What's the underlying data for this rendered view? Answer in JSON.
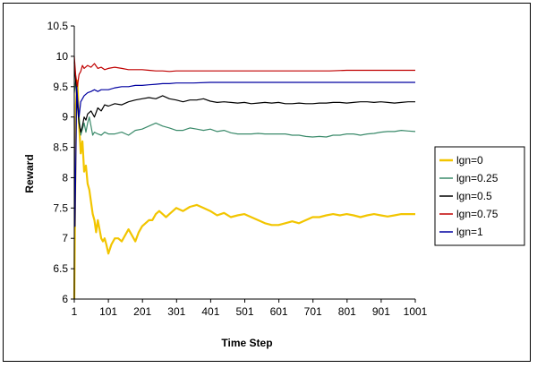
{
  "chart_data": {
    "type": "line",
    "title": "",
    "xlabel": "Time Step",
    "ylabel": "Reward",
    "xlim": [
      1,
      1001
    ],
    "ylim": [
      6,
      10.5
    ],
    "x_ticks": [
      1,
      101,
      201,
      301,
      401,
      501,
      601,
      701,
      801,
      901,
      1001
    ],
    "y_ticks": [
      6,
      6.5,
      7,
      7.5,
      8,
      8.5,
      9,
      9.5,
      10,
      10.5
    ],
    "y_tick_labels": [
      "6",
      "6.5",
      "7",
      "7.5",
      "8",
      "8.5",
      "9",
      "9.5",
      "10",
      "10.5"
    ],
    "grid": false,
    "legend_position": "right",
    "series": [
      {
        "name": "lgn=0",
        "color": "#F2C500",
        "points": [
          [
            1,
            6
          ],
          [
            3,
            7.4
          ],
          [
            6,
            9.2
          ],
          [
            10,
            9.6
          ],
          [
            15,
            8.9
          ],
          [
            20,
            8.4
          ],
          [
            25,
            8.6
          ],
          [
            30,
            8.1
          ],
          [
            35,
            8.2
          ],
          [
            40,
            7.9
          ],
          [
            45,
            7.8
          ],
          [
            50,
            7.6
          ],
          [
            55,
            7.4
          ],
          [
            60,
            7.3
          ],
          [
            65,
            7.1
          ],
          [
            70,
            7.3
          ],
          [
            75,
            7.15
          ],
          [
            80,
            7.0
          ],
          [
            85,
            6.95
          ],
          [
            90,
            7.0
          ],
          [
            95,
            6.9
          ],
          [
            101,
            6.75
          ],
          [
            110,
            6.9
          ],
          [
            120,
            7.0
          ],
          [
            130,
            7.0
          ],
          [
            140,
            6.95
          ],
          [
            150,
            7.05
          ],
          [
            160,
            7.15
          ],
          [
            170,
            7.05
          ],
          [
            180,
            6.95
          ],
          [
            190,
            7.1
          ],
          [
            200,
            7.2
          ],
          [
            210,
            7.25
          ],
          [
            220,
            7.3
          ],
          [
            230,
            7.3
          ],
          [
            240,
            7.4
          ],
          [
            250,
            7.45
          ],
          [
            260,
            7.4
          ],
          [
            270,
            7.35
          ],
          [
            280,
            7.4
          ],
          [
            290,
            7.45
          ],
          [
            300,
            7.5
          ],
          [
            320,
            7.45
          ],
          [
            340,
            7.52
          ],
          [
            360,
            7.55
          ],
          [
            380,
            7.5
          ],
          [
            400,
            7.45
          ],
          [
            420,
            7.38
          ],
          [
            440,
            7.42
          ],
          [
            460,
            7.35
          ],
          [
            480,
            7.38
          ],
          [
            500,
            7.4
          ],
          [
            520,
            7.35
          ],
          [
            540,
            7.3
          ],
          [
            560,
            7.25
          ],
          [
            580,
            7.22
          ],
          [
            600,
            7.22
          ],
          [
            620,
            7.25
          ],
          [
            640,
            7.28
          ],
          [
            660,
            7.25
          ],
          [
            680,
            7.3
          ],
          [
            700,
            7.35
          ],
          [
            720,
            7.35
          ],
          [
            740,
            7.38
          ],
          [
            760,
            7.4
          ],
          [
            780,
            7.38
          ],
          [
            800,
            7.4
          ],
          [
            820,
            7.38
          ],
          [
            840,
            7.35
          ],
          [
            860,
            7.38
          ],
          [
            880,
            7.4
          ],
          [
            900,
            7.38
          ],
          [
            920,
            7.36
          ],
          [
            940,
            7.38
          ],
          [
            960,
            7.4
          ],
          [
            980,
            7.4
          ],
          [
            1001,
            7.4
          ]
        ]
      },
      {
        "name": "lgn=0.25",
        "color": "#3A8A6A",
        "points": [
          [
            1,
            9.4
          ],
          [
            5,
            9.6
          ],
          [
            10,
            9.3
          ],
          [
            15,
            9.0
          ],
          [
            20,
            8.7
          ],
          [
            25,
            8.8
          ],
          [
            30,
            8.9
          ],
          [
            35,
            8.75
          ],
          [
            40,
            8.9
          ],
          [
            45,
            9.0
          ],
          [
            50,
            8.85
          ],
          [
            55,
            8.7
          ],
          [
            60,
            8.75
          ],
          [
            70,
            8.72
          ],
          [
            80,
            8.7
          ],
          [
            90,
            8.75
          ],
          [
            101,
            8.72
          ],
          [
            120,
            8.72
          ],
          [
            140,
            8.75
          ],
          [
            160,
            8.7
          ],
          [
            180,
            8.78
          ],
          [
            200,
            8.8
          ],
          [
            220,
            8.85
          ],
          [
            240,
            8.9
          ],
          [
            260,
            8.85
          ],
          [
            280,
            8.82
          ],
          [
            300,
            8.78
          ],
          [
            320,
            8.78
          ],
          [
            340,
            8.82
          ],
          [
            360,
            8.8
          ],
          [
            380,
            8.78
          ],
          [
            400,
            8.8
          ],
          [
            420,
            8.76
          ],
          [
            440,
            8.78
          ],
          [
            460,
            8.74
          ],
          [
            480,
            8.72
          ],
          [
            500,
            8.72
          ],
          [
            520,
            8.72
          ],
          [
            540,
            8.73
          ],
          [
            560,
            8.72
          ],
          [
            580,
            8.72
          ],
          [
            600,
            8.72
          ],
          [
            620,
            8.72
          ],
          [
            640,
            8.7
          ],
          [
            660,
            8.7
          ],
          [
            680,
            8.68
          ],
          [
            700,
            8.67
          ],
          [
            720,
            8.68
          ],
          [
            740,
            8.67
          ],
          [
            760,
            8.7
          ],
          [
            780,
            8.7
          ],
          [
            800,
            8.72
          ],
          [
            820,
            8.72
          ],
          [
            840,
            8.7
          ],
          [
            860,
            8.72
          ],
          [
            880,
            8.73
          ],
          [
            900,
            8.75
          ],
          [
            920,
            8.76
          ],
          [
            940,
            8.76
          ],
          [
            960,
            8.78
          ],
          [
            980,
            8.77
          ],
          [
            1001,
            8.76
          ]
        ]
      },
      {
        "name": "lgn=0.5",
        "color": "#000000",
        "points": [
          [
            1,
            9.9
          ],
          [
            5,
            9.6
          ],
          [
            10,
            9.2
          ],
          [
            15,
            8.9
          ],
          [
            20,
            8.75
          ],
          [
            25,
            8.85
          ],
          [
            30,
            9.0
          ],
          [
            35,
            8.95
          ],
          [
            40,
            9.05
          ],
          [
            50,
            9.1
          ],
          [
            60,
            9.0
          ],
          [
            70,
            9.15
          ],
          [
            80,
            9.1
          ],
          [
            90,
            9.2
          ],
          [
            101,
            9.18
          ],
          [
            120,
            9.22
          ],
          [
            140,
            9.2
          ],
          [
            160,
            9.25
          ],
          [
            180,
            9.28
          ],
          [
            200,
            9.3
          ],
          [
            220,
            9.32
          ],
          [
            240,
            9.3
          ],
          [
            260,
            9.35
          ],
          [
            280,
            9.3
          ],
          [
            300,
            9.28
          ],
          [
            320,
            9.25
          ],
          [
            340,
            9.28
          ],
          [
            360,
            9.28
          ],
          [
            380,
            9.3
          ],
          [
            400,
            9.26
          ],
          [
            420,
            9.24
          ],
          [
            440,
            9.25
          ],
          [
            460,
            9.24
          ],
          [
            480,
            9.23
          ],
          [
            500,
            9.24
          ],
          [
            520,
            9.22
          ],
          [
            540,
            9.23
          ],
          [
            560,
            9.24
          ],
          [
            580,
            9.23
          ],
          [
            600,
            9.24
          ],
          [
            620,
            9.22
          ],
          [
            640,
            9.22
          ],
          [
            660,
            9.23
          ],
          [
            680,
            9.22
          ],
          [
            700,
            9.22
          ],
          [
            720,
            9.23
          ],
          [
            740,
            9.23
          ],
          [
            760,
            9.24
          ],
          [
            780,
            9.24
          ],
          [
            800,
            9.23
          ],
          [
            820,
            9.24
          ],
          [
            840,
            9.25
          ],
          [
            860,
            9.25
          ],
          [
            880,
            9.24
          ],
          [
            900,
            9.25
          ],
          [
            920,
            9.24
          ],
          [
            940,
            9.23
          ],
          [
            960,
            9.24
          ],
          [
            980,
            9.25
          ],
          [
            1001,
            9.25
          ]
        ]
      },
      {
        "name": "lgn=0.75",
        "color": "#C00000",
        "points": [
          [
            1,
            10.0
          ],
          [
            5,
            9.7
          ],
          [
            10,
            9.5
          ],
          [
            15,
            9.7
          ],
          [
            20,
            9.75
          ],
          [
            25,
            9.85
          ],
          [
            30,
            9.8
          ],
          [
            40,
            9.85
          ],
          [
            50,
            9.82
          ],
          [
            60,
            9.88
          ],
          [
            70,
            9.8
          ],
          [
            80,
            9.82
          ],
          [
            90,
            9.78
          ],
          [
            101,
            9.8
          ],
          [
            120,
            9.82
          ],
          [
            140,
            9.8
          ],
          [
            160,
            9.78
          ],
          [
            180,
            9.78
          ],
          [
            200,
            9.78
          ],
          [
            220,
            9.77
          ],
          [
            240,
            9.76
          ],
          [
            260,
            9.76
          ],
          [
            280,
            9.75
          ],
          [
            300,
            9.76
          ],
          [
            350,
            9.76
          ],
          [
            400,
            9.76
          ],
          [
            450,
            9.76
          ],
          [
            500,
            9.76
          ],
          [
            550,
            9.76
          ],
          [
            600,
            9.76
          ],
          [
            650,
            9.76
          ],
          [
            700,
            9.76
          ],
          [
            750,
            9.76
          ],
          [
            800,
            9.77
          ],
          [
            850,
            9.77
          ],
          [
            900,
            9.77
          ],
          [
            950,
            9.77
          ],
          [
            1001,
            9.77
          ]
        ]
      },
      {
        "name": "lgn=1",
        "color": "#0000A0",
        "points": [
          [
            1,
            9.0
          ],
          [
            3,
            7.2
          ],
          [
            5,
            8.0
          ],
          [
            8,
            9.5
          ],
          [
            12,
            9.2
          ],
          [
            15,
            9.0
          ],
          [
            20,
            9.25
          ],
          [
            25,
            9.3
          ],
          [
            30,
            9.35
          ],
          [
            40,
            9.4
          ],
          [
            50,
            9.42
          ],
          [
            60,
            9.45
          ],
          [
            70,
            9.42
          ],
          [
            80,
            9.45
          ],
          [
            101,
            9.45
          ],
          [
            120,
            9.48
          ],
          [
            140,
            9.5
          ],
          [
            160,
            9.5
          ],
          [
            180,
            9.52
          ],
          [
            200,
            9.52
          ],
          [
            220,
            9.53
          ],
          [
            240,
            9.54
          ],
          [
            260,
            9.55
          ],
          [
            280,
            9.55
          ],
          [
            300,
            9.56
          ],
          [
            350,
            9.56
          ],
          [
            400,
            9.57
          ],
          [
            450,
            9.57
          ],
          [
            500,
            9.57
          ],
          [
            550,
            9.57
          ],
          [
            600,
            9.57
          ],
          [
            650,
            9.57
          ],
          [
            700,
            9.57
          ],
          [
            750,
            9.57
          ],
          [
            800,
            9.57
          ],
          [
            850,
            9.57
          ],
          [
            900,
            9.57
          ],
          [
            950,
            9.57
          ],
          [
            1001,
            9.57
          ]
        ]
      }
    ]
  }
}
